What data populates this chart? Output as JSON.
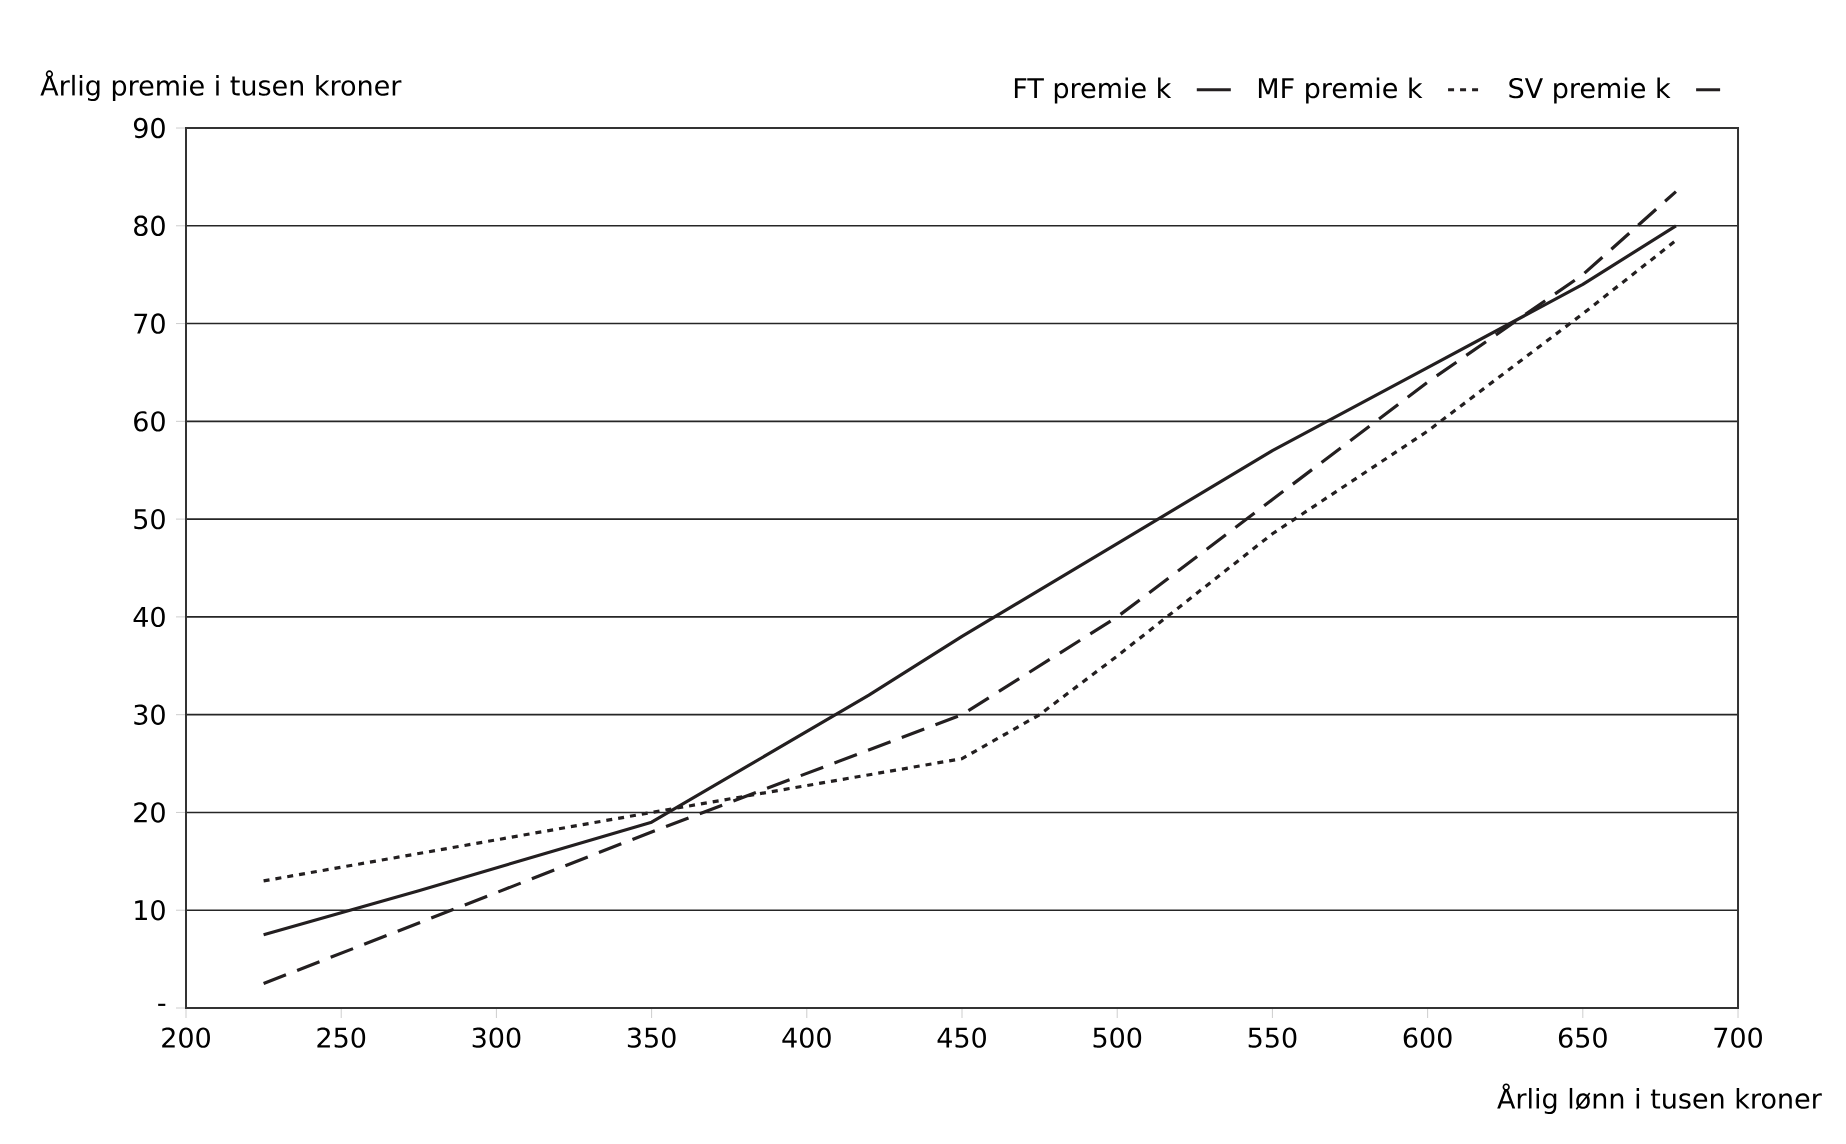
{
  "chart_data": {
    "type": "line",
    "ylabel": "Årlig premie i tusen kroner",
    "xlabel": "Årlig lønn i tusen kroner",
    "xlim": [
      200,
      700
    ],
    "xticks": [
      200,
      250,
      300,
      350,
      400,
      450,
      500,
      550,
      600,
      650,
      700
    ],
    "ylim": [
      0,
      90
    ],
    "yticks": [
      {
        "value": 0,
        "label": "-"
      },
      10,
      20,
      30,
      40,
      50,
      60,
      70,
      80,
      90
    ],
    "grid": "y",
    "legend": "top",
    "marker": "none",
    "series": [
      {
        "name": "FT premie k",
        "color": "#231f20",
        "line_style": "solid",
        "x": [
          225,
          275,
          350,
          420,
          450,
          500,
          550,
          600,
          650,
          680
        ],
        "values": [
          7.5,
          12,
          19,
          32,
          38,
          47.5,
          57,
          65.5,
          74,
          80
        ]
      },
      {
        "name": "MF premie k",
        "color": "#231f20",
        "line_style": "dotted",
        "x": [
          225,
          350,
          450,
          475,
          500,
          550,
          600,
          650,
          680
        ],
        "values": [
          13,
          20,
          25.5,
          30,
          36,
          48.5,
          59,
          71,
          78.5
        ]
      },
      {
        "name": "SV premie k",
        "color": "#231f20",
        "line_style": "dashed",
        "x": [
          225,
          350,
          450,
          500,
          550,
          600,
          650,
          680
        ],
        "values": [
          2.5,
          18,
          30,
          40,
          52,
          64,
          75,
          83.5
        ]
      }
    ]
  }
}
